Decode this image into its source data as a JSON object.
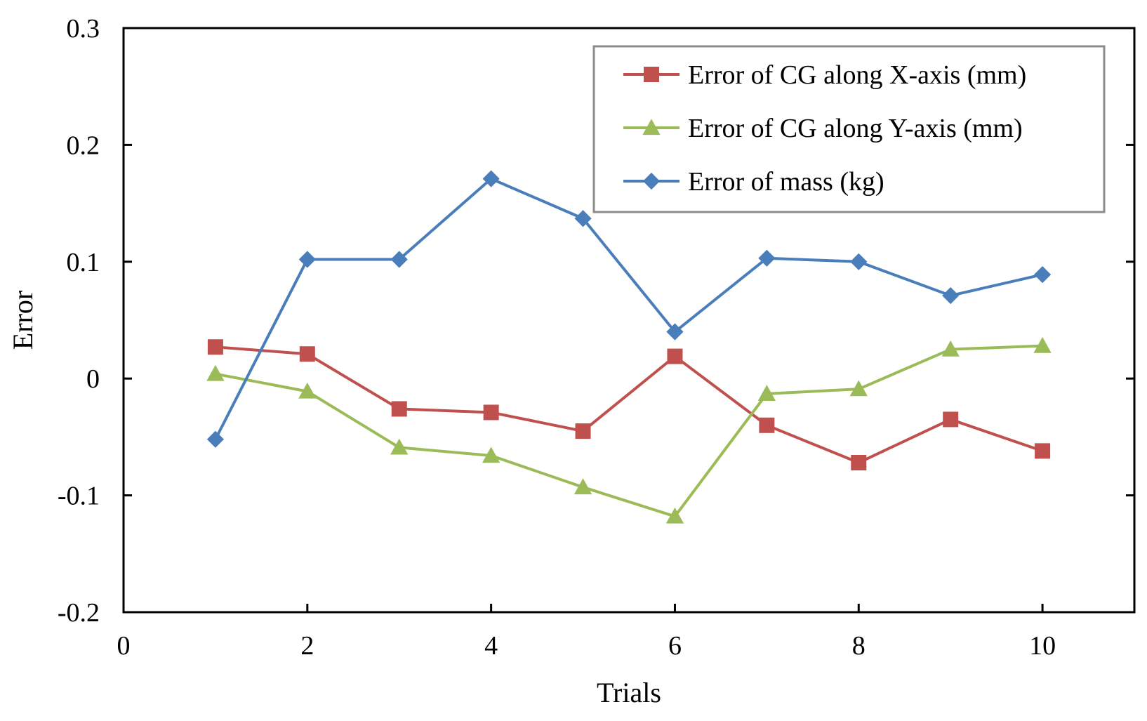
{
  "chart_data": {
    "type": "line",
    "title": "",
    "xlabel": "Trials",
    "ylabel": "Error",
    "xlim": [
      0,
      11
    ],
    "ylim": [
      -0.2,
      0.3
    ],
    "x_ticks": [
      0,
      2,
      4,
      6,
      8,
      10
    ],
    "x_tick_labels": [
      "0",
      "2",
      "4",
      "6",
      "8",
      "10"
    ],
    "y_ticks": [
      -0.2,
      -0.1,
      0,
      0.1,
      0.2,
      0.3
    ],
    "y_tick_labels": [
      "-0.2",
      "-0.1",
      "0",
      "0.1",
      "0.2",
      "0.3"
    ],
    "grid": false,
    "legend_position": "top-right",
    "x": [
      1,
      2,
      3,
      4,
      5,
      6,
      7,
      8,
      9,
      10
    ],
    "series": [
      {
        "name": "Error of CG along X-axis (mm)",
        "color": "#c0504d",
        "marker": "square",
        "values": [
          0.027,
          0.021,
          -0.026,
          -0.029,
          -0.045,
          0.019,
          -0.04,
          -0.072,
          -0.035,
          -0.062
        ]
      },
      {
        "name": "Error of CG along Y-axis (mm)",
        "color": "#9bbb59",
        "marker": "triangle",
        "values": [
          0.004,
          -0.011,
          -0.059,
          -0.066,
          -0.093,
          -0.118,
          -0.013,
          -0.009,
          0.025,
          0.028
        ]
      },
      {
        "name": "Error of mass (kg)",
        "color": "#4a7ebb",
        "marker": "diamond",
        "values": [
          -0.052,
          0.102,
          0.102,
          0.171,
          0.137,
          0.04,
          0.103,
          0.1,
          0.071,
          0.089
        ]
      }
    ]
  }
}
